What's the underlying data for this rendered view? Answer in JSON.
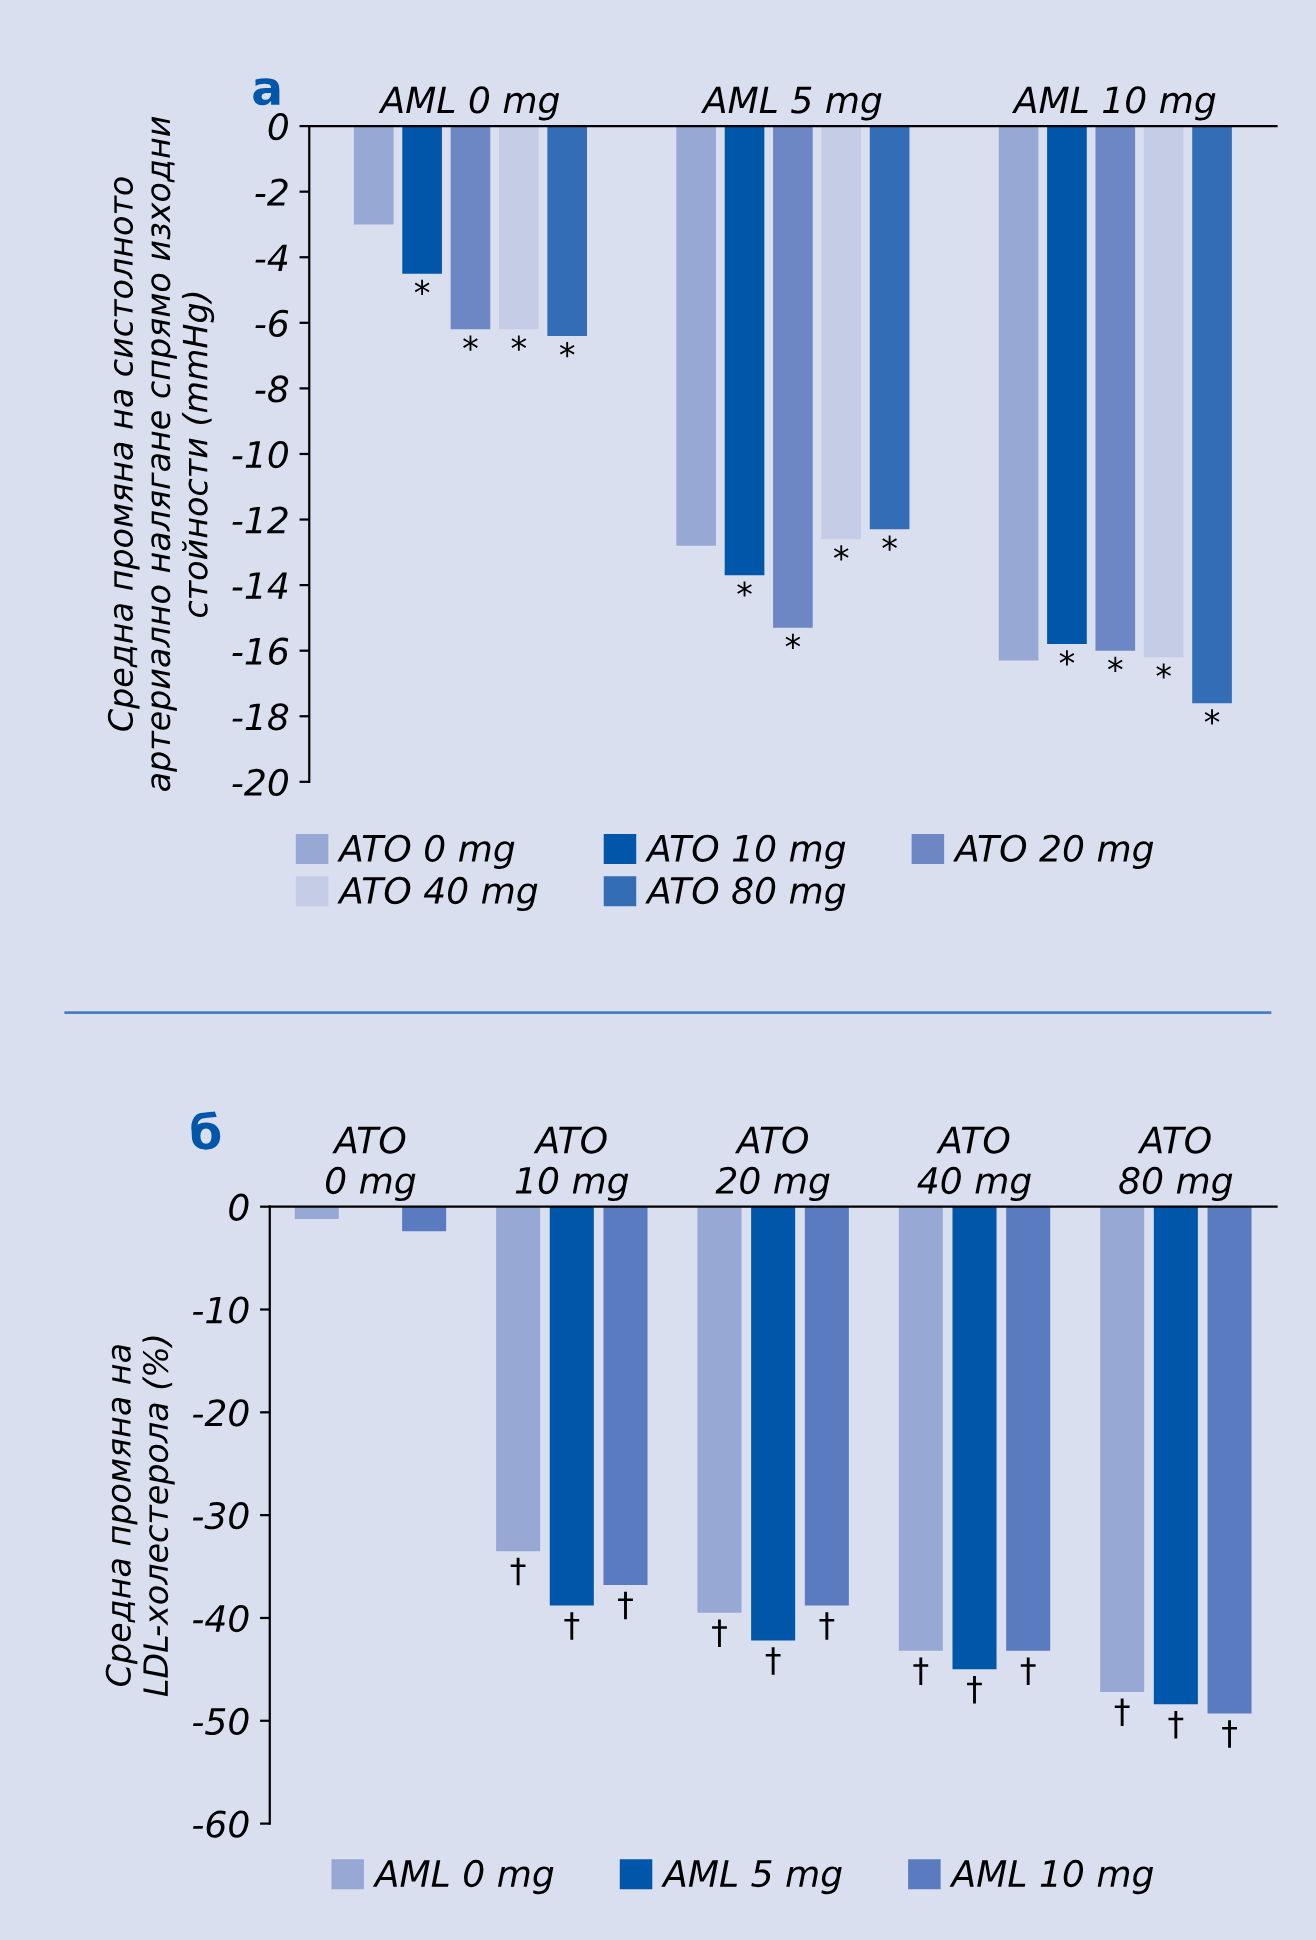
{
  "chart_data": [
    {
      "type": "bar",
      "title": "а",
      "ylabel": "Средна промяна на систолното\nартериално налягане спрямо изходни\nстойности (mmHg)",
      "categories": [
        "AML 0 mg",
        "AML 5 mg",
        "AML 10 mg"
      ],
      "series": [
        {
          "name": "ATO 0 mg",
          "color": "#97a8d4",
          "values": [
            -3.0,
            -12.8,
            -16.3
          ]
        },
        {
          "name": "ATO 10 mg",
          "color": "#0056a8",
          "values": [
            -4.5,
            -13.7,
            -15.8
          ],
          "value_labels": [
            "*",
            "*",
            "*"
          ]
        },
        {
          "name": "ATO 20 mg",
          "color": "#6c87c4",
          "values": [
            -6.2,
            -15.3,
            -16.0
          ],
          "value_labels": [
            "*",
            "*",
            "*"
          ]
        },
        {
          "name": "ATO 40 mg",
          "color": "#c5cce6",
          "values": [
            -6.2,
            -12.6,
            -16.2
          ],
          "value_labels": [
            "*",
            "*",
            "*"
          ]
        },
        {
          "name": "ATO 80 mg",
          "color": "#336db5",
          "values": [
            -6.4,
            -12.3,
            -17.6
          ],
          "value_labels": [
            "*",
            "*",
            "*"
          ]
        }
      ],
      "ylim": [
        -20,
        0
      ],
      "yticks": [
        0,
        -2,
        -4,
        -6,
        -8,
        -10,
        -12,
        -14,
        -16,
        -18,
        -20
      ],
      "grid": false,
      "legend": "bottom"
    },
    {
      "type": "bar",
      "title": "б",
      "ylabel": "Средна промяна на\nLDL-холестерола (%)",
      "categories": [
        "ATO\n0 mg",
        "ATO\n10 mg",
        "ATO\n20 mg",
        "ATO\n40 mg",
        "ATO\n80 mg"
      ],
      "series": [
        {
          "name": "AML 0 mg",
          "color": "#97a8d4",
          "values": [
            -1.2,
            -33.5,
            -39.5,
            -43.2,
            -47.2
          ],
          "value_labels": [
            null,
            "†",
            "†",
            "†",
            "†"
          ]
        },
        {
          "name": "AML 5 mg",
          "color": "#0056a8",
          "values": [
            null,
            -38.8,
            -42.2,
            -45.0,
            -48.4
          ],
          "value_labels": [
            null,
            "†",
            "†",
            "†",
            "†"
          ]
        },
        {
          "name": "AML 10 mg",
          "color": "#5a7bc0",
          "values": [
            -2.4,
            -36.8,
            -38.8,
            -43.2,
            -49.3
          ],
          "value_labels": [
            null,
            "†",
            "†",
            "†",
            "†"
          ]
        }
      ],
      "ylim": [
        -60,
        0
      ],
      "yticks": [
        0,
        -10,
        -20,
        -30,
        -40,
        -50,
        -60
      ],
      "grid": false,
      "legend": "bottom"
    }
  ]
}
